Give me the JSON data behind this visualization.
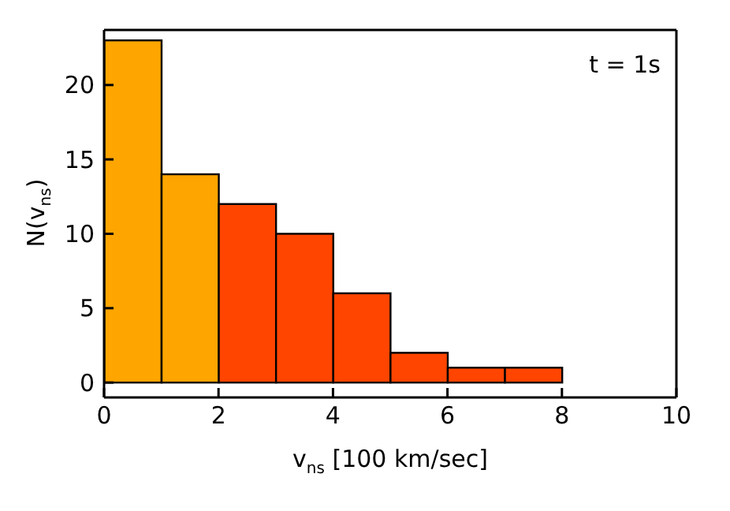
{
  "chart_data": {
    "type": "histogram",
    "xlabel": "v$_{ns}$ [100 km/sec]",
    "ylabel": "N(v$_{ns}$)",
    "annotations": [
      "t = 1s"
    ],
    "bins": [
      0,
      1,
      2,
      3,
      4,
      5,
      6,
      7,
      8
    ],
    "values": [
      23,
      14,
      12,
      10,
      6,
      2,
      1,
      1
    ],
    "colors": [
      "#ffa500",
      "#ffa500",
      "#ff4500",
      "#ff4500",
      "#ff4500",
      "#ff4500",
      "#ff4500",
      "#ff4500"
    ],
    "xlim": [
      0,
      10
    ],
    "xticks": [
      0,
      2,
      4,
      6,
      8,
      10
    ],
    "ylim": [
      -1,
      23.7
    ],
    "yticks": [
      0,
      5,
      10,
      15,
      20
    ]
  }
}
